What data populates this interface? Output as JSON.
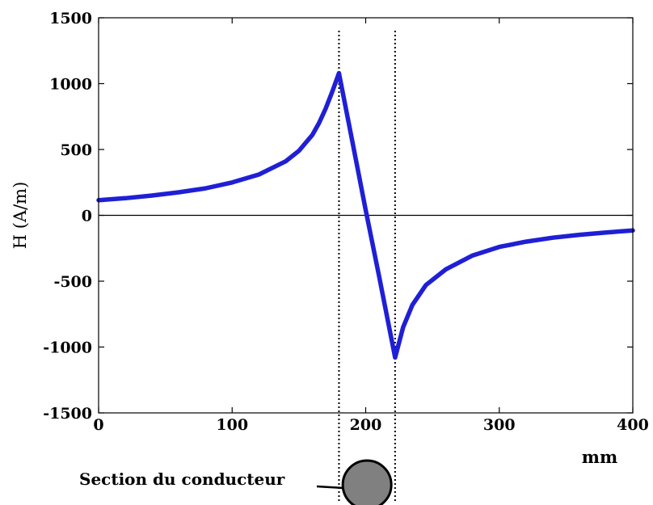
{
  "chart_data": {
    "type": "line",
    "title": "",
    "xlabel": "mm",
    "ylabel": "H (A/m)",
    "xlim": [
      0,
      400
    ],
    "ylim": [
      -1500,
      1500
    ],
    "x_ticks": [
      0,
      100,
      200,
      300,
      400
    ],
    "y_ticks": [
      -1500,
      -1000,
      -500,
      0,
      500,
      1000,
      1500
    ],
    "x_tick_labels": [
      "0",
      "100",
      "200",
      "300",
      "400"
    ],
    "y_tick_labels": [
      "-1500",
      "-1000",
      "-500",
      "0",
      "500",
      "1000",
      "1500"
    ],
    "grid": false,
    "legend": "none",
    "line_color": "#1f1fd6",
    "series": [
      {
        "x": [
          0,
          20,
          40,
          60,
          80,
          100,
          120,
          140,
          150,
          160,
          165,
          170,
          175,
          180,
          190,
          200,
          210,
          222,
          228,
          235,
          245,
          260,
          280,
          300,
          320,
          340,
          360,
          380,
          400
        ],
        "values": [
          115,
          130,
          150,
          175,
          205,
          250,
          310,
          410,
          490,
          610,
          700,
          810,
          940,
          1080,
          560,
          40,
          -460,
          -1080,
          -850,
          -680,
          -530,
          -410,
          -305,
          -240,
          -200,
          -170,
          -148,
          -130,
          -115
        ]
      }
    ],
    "reference_lines_x": [
      180,
      222
    ],
    "annotation": {
      "text": "Section du conducteur",
      "conductor_x": [
        180,
        222
      ]
    }
  }
}
